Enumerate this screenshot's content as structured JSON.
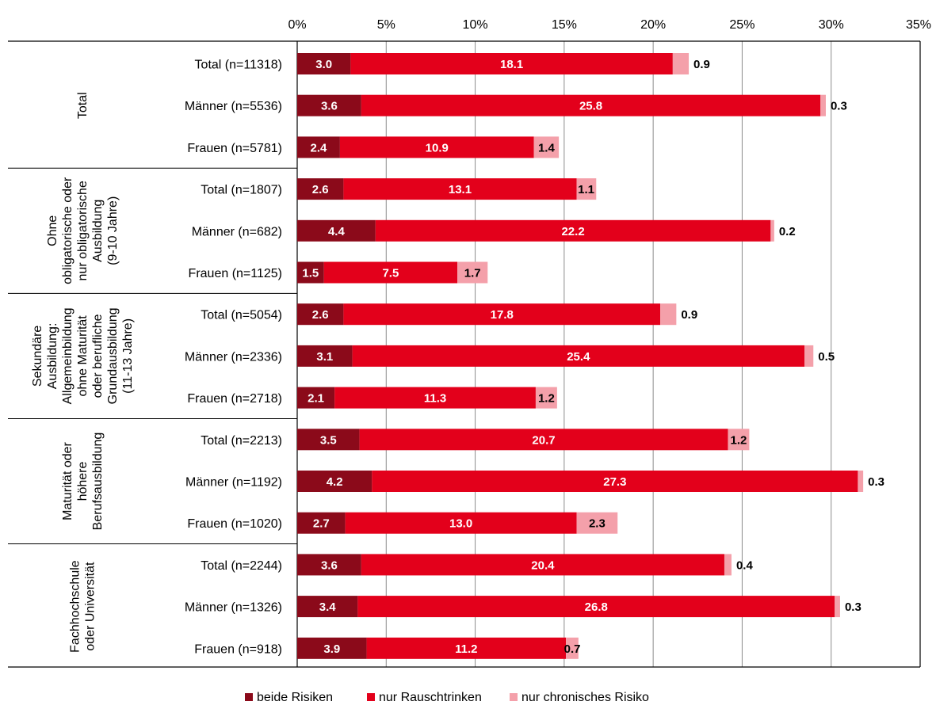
{
  "chart_data": {
    "type": "bar",
    "orientation": "horizontal",
    "stacked": true,
    "xlim": [
      0,
      35
    ],
    "xticks": [
      "0%",
      "5%",
      "10%",
      "15%",
      "20%",
      "25%",
      "30%",
      "35%"
    ],
    "xtick_values": [
      0,
      5,
      10,
      15,
      20,
      25,
      30,
      35
    ],
    "grid": true,
    "legend_position": "bottom",
    "colors": {
      "beide": "#8b0a1a",
      "rausch": "#e3001b",
      "chronisch": "#f4a0aa"
    },
    "series": [
      {
        "name": "beide Risiken",
        "key": "beide"
      },
      {
        "name": "nur Rauschtrinken",
        "key": "rausch"
      },
      {
        "name": "nur chronisches Risiko",
        "key": "chronisch"
      }
    ],
    "groups": [
      {
        "label": [
          "Total"
        ],
        "rows": [
          {
            "label": "Total  (n=11318)",
            "values": [
              3.0,
              18.1,
              0.9
            ],
            "labels": [
              "3.0",
              "18.1",
              "0.9"
            ]
          },
          {
            "label": "Männer (n=5536)",
            "values": [
              3.6,
              25.8,
              0.3
            ],
            "labels": [
              "3.6",
              "25.8",
              "0.3"
            ]
          },
          {
            "label": "Frauen  (n=5781)",
            "values": [
              2.4,
              10.9,
              1.4
            ],
            "labels": [
              "2.4",
              "10.9",
              "1.4"
            ]
          }
        ]
      },
      {
        "label": [
          "Ohne",
          "obligatorische oder",
          "nur obligatorische",
          "Ausbildung",
          "(9-10 Jahre)"
        ],
        "rows": [
          {
            "label": "Total  (n=1807)",
            "values": [
              2.6,
              13.1,
              1.1
            ],
            "labels": [
              "2.6",
              "13.1",
              "1.1"
            ]
          },
          {
            "label": "Männer (n=682)",
            "values": [
              4.4,
              22.2,
              0.2
            ],
            "labels": [
              "4.4",
              "22.2",
              "0.2"
            ]
          },
          {
            "label": "Frauen  (n=1125)",
            "values": [
              1.5,
              7.5,
              1.7
            ],
            "labels": [
              "1.5",
              "7.5",
              "1.7"
            ]
          }
        ]
      },
      {
        "label": [
          "Sekundäre",
          "Ausbildung:",
          "Allgemeinbildung",
          "ohne Maturität",
          "oder berufliche",
          "Grundausbildung",
          "(11-13 Jahre)"
        ],
        "rows": [
          {
            "label": "Total  (n=5054)",
            "values": [
              2.6,
              17.8,
              0.9
            ],
            "labels": [
              "2.6",
              "17.8",
              "0.9"
            ]
          },
          {
            "label": "Männer (n=2336)",
            "values": [
              3.1,
              25.4,
              0.5
            ],
            "labels": [
              "3.1",
              "25.4",
              "0.5"
            ]
          },
          {
            "label": "Frauen  (n=2718)",
            "values": [
              2.1,
              11.3,
              1.2
            ],
            "labels": [
              "2.1",
              "11.3",
              "1.2"
            ]
          }
        ]
      },
      {
        "label": [
          "Maturität oder",
          "höhere",
          "Berufsausbildung"
        ],
        "rows": [
          {
            "label": "Total  (n=2213)",
            "values": [
              3.5,
              20.7,
              1.2
            ],
            "labels": [
              "3.5",
              "20.7",
              "1.2"
            ]
          },
          {
            "label": "Männer (n=1192)",
            "values": [
              4.2,
              27.3,
              0.3
            ],
            "labels": [
              "4.2",
              "27.3",
              "0.3"
            ]
          },
          {
            "label": "Frauen  (n=1020)",
            "values": [
              2.7,
              13.0,
              2.3
            ],
            "labels": [
              "2.7",
              "13.0",
              "2.3"
            ]
          }
        ]
      },
      {
        "label": [
          "Fachhochschule",
          "oder Universität"
        ],
        "rows": [
          {
            "label": "Total  (n=2244)",
            "values": [
              3.6,
              20.4,
              0.4
            ],
            "labels": [
              "3.6",
              "20.4",
              "0.4"
            ]
          },
          {
            "label": "Männer (n=1326)",
            "values": [
              3.4,
              26.8,
              0.3
            ],
            "labels": [
              "3.4",
              "26.8",
              "0.3"
            ]
          },
          {
            "label": "Frauen  (n=918)",
            "values": [
              3.9,
              11.2,
              0.7
            ],
            "labels": [
              "3.9",
              "11.2",
              "0.7"
            ]
          }
        ]
      }
    ]
  }
}
